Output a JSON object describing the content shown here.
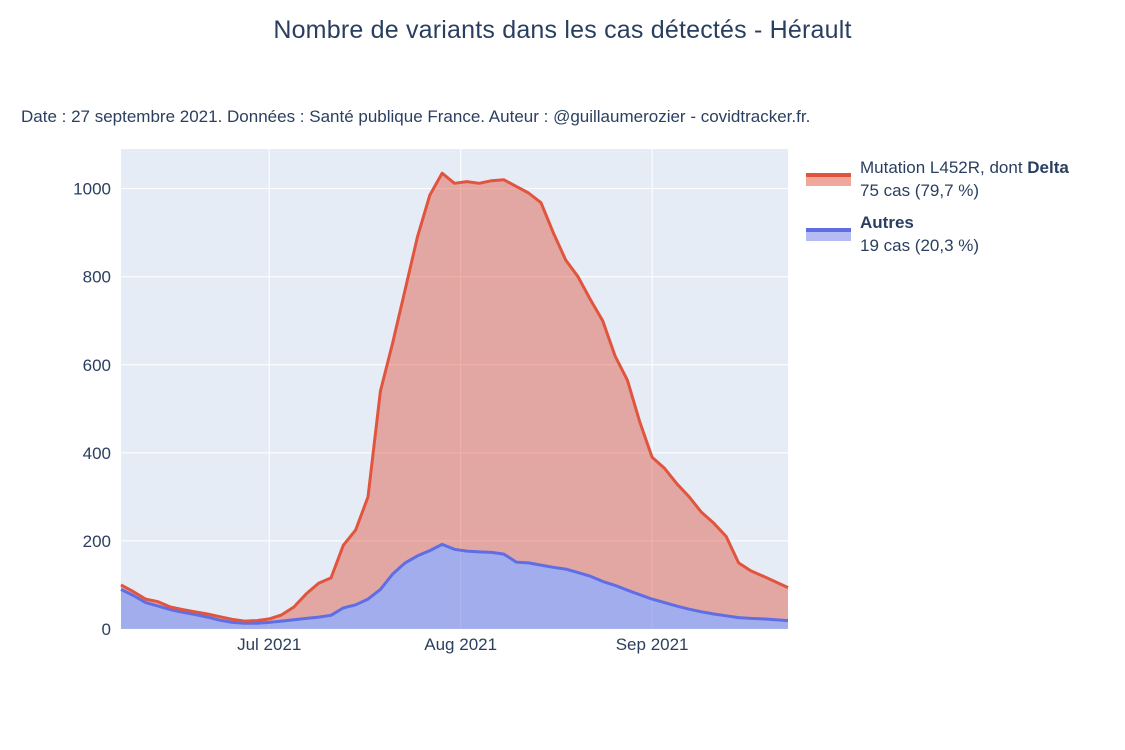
{
  "title": "Nombre de variants dans les cas détectés - Hérault",
  "subtitle": "Date : 27 septembre 2021. Données : Santé publique France. Auteur : @guillaumerozier - covidtracker.fr.",
  "colors": {
    "accent_red_line": "#e1553e",
    "accent_red_fill": "#f0a89d",
    "accent_blue_line": "#5f6ee4",
    "accent_blue_fill": "#b6bcf3",
    "plot_background": "#e5ecf6",
    "grid": "#ffffff",
    "text": "#2a3f5f"
  },
  "legend": {
    "items": [
      {
        "label_prefix": "Mutation L452R, dont ",
        "label_bold": "Delta",
        "sublabel": "75 cas (79,7 %)",
        "line_color": "#e1553e",
        "fill_color": "#f0a89d"
      },
      {
        "label_prefix": "",
        "label_bold": "Autres",
        "sublabel": "19 cas (20,3 %)",
        "line_color": "#5f6ee4",
        "fill_color": "#b6bcf3"
      }
    ]
  },
  "chart_data": {
    "type": "area",
    "stacked": true,
    "title": "Nombre de variants dans les cas détectés - Hérault",
    "xlabel": "",
    "ylabel": "",
    "ylim": [
      0,
      1090
    ],
    "grid": true,
    "legend_position": "right",
    "x": [
      "2021-06-07",
      "2021-06-09",
      "2021-06-11",
      "2021-06-13",
      "2021-06-15",
      "2021-06-17",
      "2021-06-19",
      "2021-06-21",
      "2021-06-23",
      "2021-06-25",
      "2021-06-27",
      "2021-06-29",
      "2021-07-01",
      "2021-07-03",
      "2021-07-05",
      "2021-07-07",
      "2021-07-09",
      "2021-07-11",
      "2021-07-13",
      "2021-07-15",
      "2021-07-17",
      "2021-07-19",
      "2021-07-21",
      "2021-07-23",
      "2021-07-25",
      "2021-07-27",
      "2021-07-29",
      "2021-07-31",
      "2021-08-02",
      "2021-08-04",
      "2021-08-06",
      "2021-08-08",
      "2021-08-10",
      "2021-08-12",
      "2021-08-14",
      "2021-08-16",
      "2021-08-18",
      "2021-08-20",
      "2021-08-22",
      "2021-08-24",
      "2021-08-26",
      "2021-08-28",
      "2021-08-30",
      "2021-09-01",
      "2021-09-03",
      "2021-09-05",
      "2021-09-07",
      "2021-09-09",
      "2021-09-11",
      "2021-09-13",
      "2021-09-15",
      "2021-09-17",
      "2021-09-19",
      "2021-09-21",
      "2021-09-23"
    ],
    "series": [
      {
        "name": "Mutation L452R, dont Delta (ligne supérieure, empilée sur Autres)",
        "color": "#e1553e",
        "last_value_label": "75 cas (79,7 %)",
        "values": [
          100,
          85,
          68,
          62,
          50,
          44,
          39,
          34,
          28,
          22,
          18,
          19,
          23,
          32,
          50,
          80,
          104,
          116,
          190,
          225,
          300,
          540,
          650,
          770,
          890,
          985,
          1035,
          1012,
          1016,
          1012,
          1018,
          1020,
          1005,
          990,
          968,
          900,
          838,
          800,
          748,
          700,
          620,
          565,
          470,
          390,
          365,
          330,
          300,
          265,
          240,
          210,
          150,
          132,
          120,
          107,
          94
        ]
      },
      {
        "name": "Autres",
        "color": "#5f6ee4",
        "last_value_label": "19 cas (20,3 %)",
        "values": [
          90,
          76,
          60,
          52,
          44,
          38,
          33,
          27,
          20,
          15,
          13,
          13,
          15,
          18,
          21,
          24,
          27,
          31,
          48,
          55,
          68,
          90,
          125,
          150,
          166,
          178,
          192,
          181,
          177,
          175,
          174,
          170,
          152,
          150,
          145,
          140,
          136,
          128,
          120,
          108,
          99,
          88,
          78,
          68,
          60,
          52,
          45,
          39,
          34,
          30,
          26,
          24,
          23,
          21,
          19
        ]
      }
    ],
    "xticks": [
      {
        "label": "Jul 2021",
        "date": "2021-07-01"
      },
      {
        "label": "Aug 2021",
        "date": "2021-08-01"
      },
      {
        "label": "Sep 2021",
        "date": "2021-09-01"
      }
    ],
    "yticks": [
      0,
      200,
      400,
      600,
      800,
      1000
    ]
  }
}
